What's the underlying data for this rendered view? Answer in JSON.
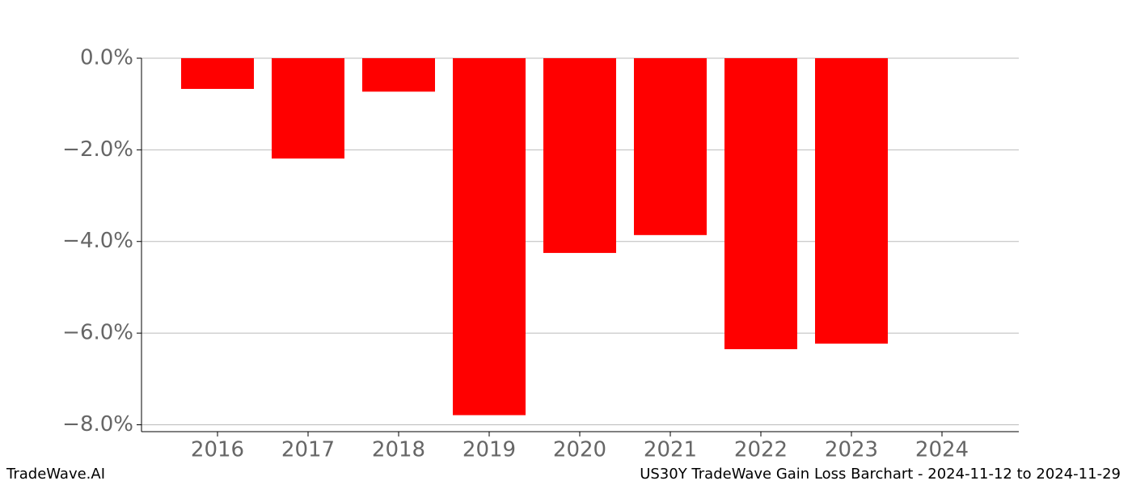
{
  "chart_data": {
    "type": "bar",
    "title": "US30Y TradeWave Gain Loss Barchart - 2024-11-12 to 2024-11-29",
    "watermark": "TradeWave.AI",
    "categories": [
      "2016",
      "2017",
      "2018",
      "2019",
      "2020",
      "2021",
      "2022",
      "2023",
      "2024"
    ],
    "values": [
      -0.67,
      -2.19,
      -0.73,
      -7.79,
      -4.25,
      -3.86,
      -6.35,
      -6.23,
      null
    ],
    "color": "#ff0000",
    "ylim": [
      -8.15,
      0
    ],
    "yticks": [
      {
        "value": 0,
        "label": "0.0%"
      },
      {
        "value": -2,
        "label": "−2.0%"
      },
      {
        "value": -4,
        "label": "−4.0%"
      },
      {
        "value": -6,
        "label": "−6.0%"
      },
      {
        "value": -8,
        "label": "−8.0%"
      }
    ],
    "grid": true
  }
}
